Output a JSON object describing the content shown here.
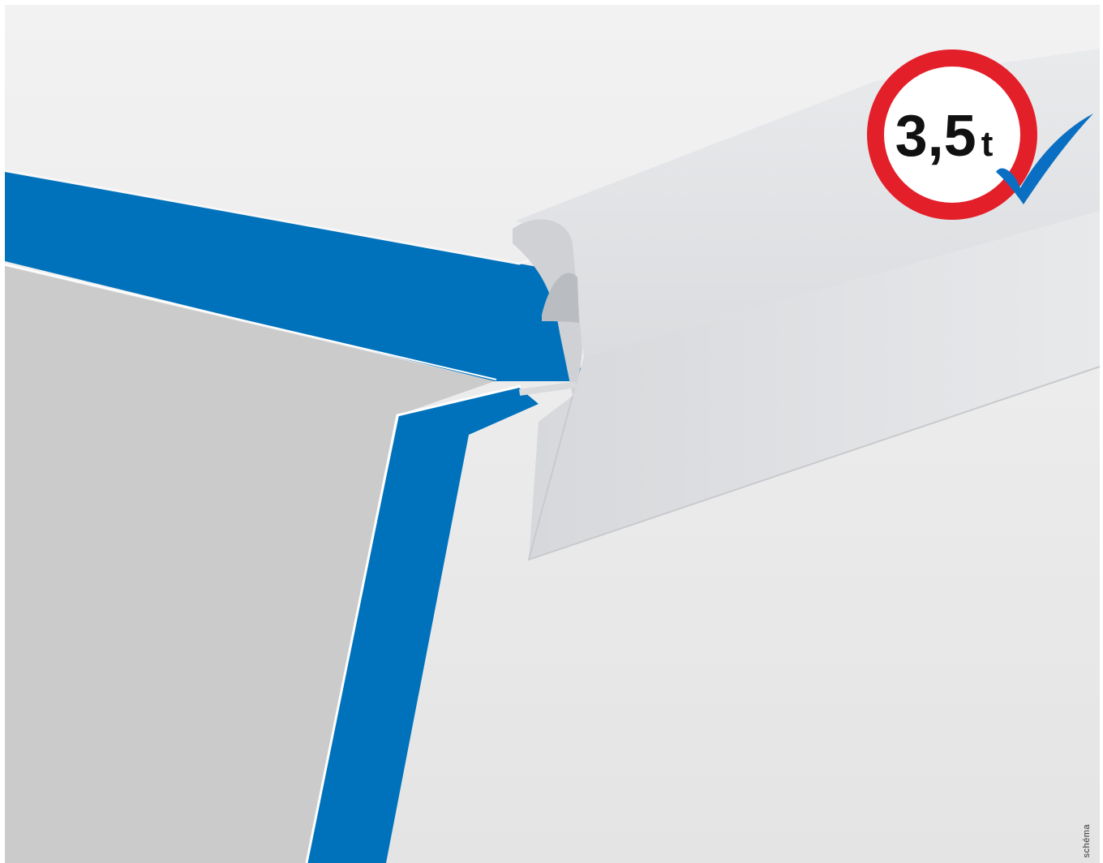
{
  "badge": {
    "value": "3,5",
    "unit": "t",
    "ring_color": "#e3202a",
    "check_color": "#0a6fc2"
  },
  "caption": "schéma",
  "colors": {
    "background": "#ececec",
    "pool_wall": "#0072bc",
    "pool_inner": "#cbcbcb",
    "coping": "#e3e5e7"
  },
  "icons": [
    "check-icon",
    "weight-limit-sign"
  ]
}
